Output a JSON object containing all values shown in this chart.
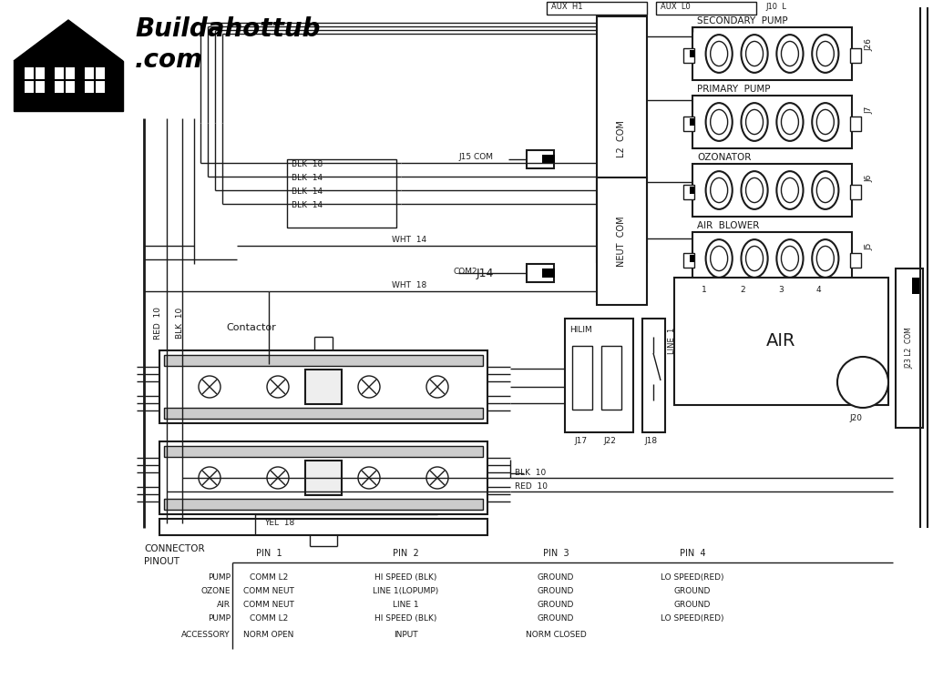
{
  "bg_color": "#ffffff",
  "line_color": "#1a1a1a",
  "connector_table": {
    "rows": [
      [
        "PUMP",
        "COMM L2",
        "HI SPEED (BLK)",
        "GROUND",
        "LO SPEED(RED)"
      ],
      [
        "OZONE",
        "COMM NEUT",
        "LINE 1(LOPUMP)",
        "GROUND",
        "GROUND"
      ],
      [
        "AIR",
        "COMM NEUT",
        "LINE 1",
        "GROUND",
        "GROUND"
      ],
      [
        "PUMP",
        "COMM L2",
        "HI SPEED (BLK)",
        "GROUND",
        "LO SPEED(RED)"
      ],
      [
        "ACCESSORY",
        "NORM OPEN",
        "INPUT",
        "NORM CLOSED",
        ""
      ]
    ]
  }
}
